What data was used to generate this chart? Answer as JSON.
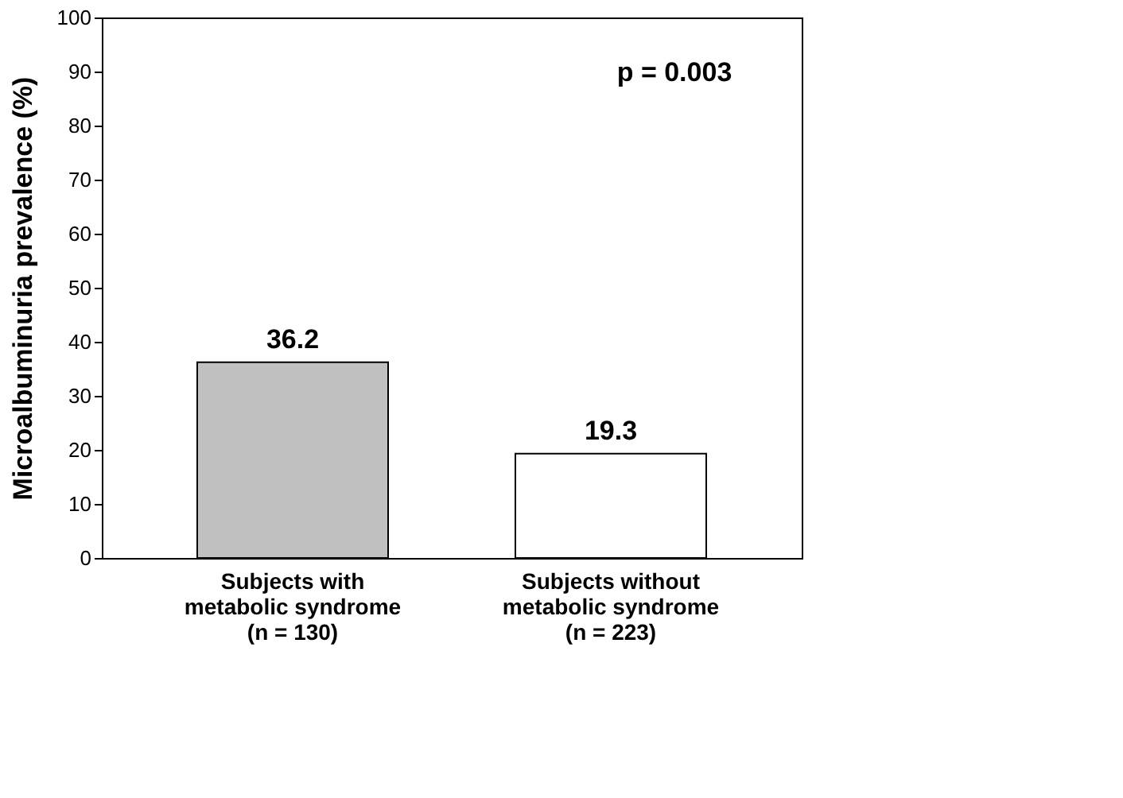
{
  "chart_data": {
    "type": "bar",
    "ylabel": "Microalbuminuria prevalence (%)",
    "categories": [
      "Subjects with\nmetabolic syndrome\n(n = 130)",
      "Subjects without\nmetabolic syndrome\n(n = 223)"
    ],
    "values": [
      36.2,
      19.3
    ],
    "colors": [
      "#c0c0c0",
      "#ffffff"
    ],
    "ylim": [
      0,
      100
    ],
    "yticks": [
      0,
      10,
      20,
      30,
      40,
      50,
      60,
      70,
      80,
      90,
      100
    ],
    "data_labels": true,
    "grid": false,
    "annotations": [
      "p = 0.003"
    ]
  }
}
